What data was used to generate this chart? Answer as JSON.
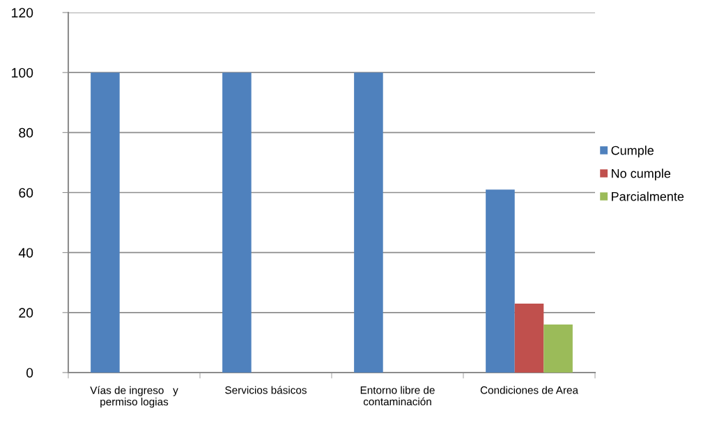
{
  "chart_data": {
    "type": "bar",
    "categories": [
      "Vías de ingreso   y\npermiso logias",
      "Servicios básicos",
      "Entorno libre de\ncontaminación",
      "Condiciones de Area"
    ],
    "series": [
      {
        "name": "Cumple",
        "color": "#4f81bd",
        "values": [
          100,
          100,
          100,
          61
        ]
      },
      {
        "name": "No cumple",
        "color": "#c0504d",
        "values": [
          null,
          null,
          null,
          23
        ]
      },
      {
        "name": "Parcialmente",
        "color": "#9bbb59",
        "values": [
          null,
          null,
          null,
          16
        ]
      }
    ],
    "ylim": [
      0,
      120
    ],
    "yticks": [
      0,
      20,
      40,
      60,
      80,
      100,
      120
    ],
    "grid": "y",
    "legend": "right"
  }
}
